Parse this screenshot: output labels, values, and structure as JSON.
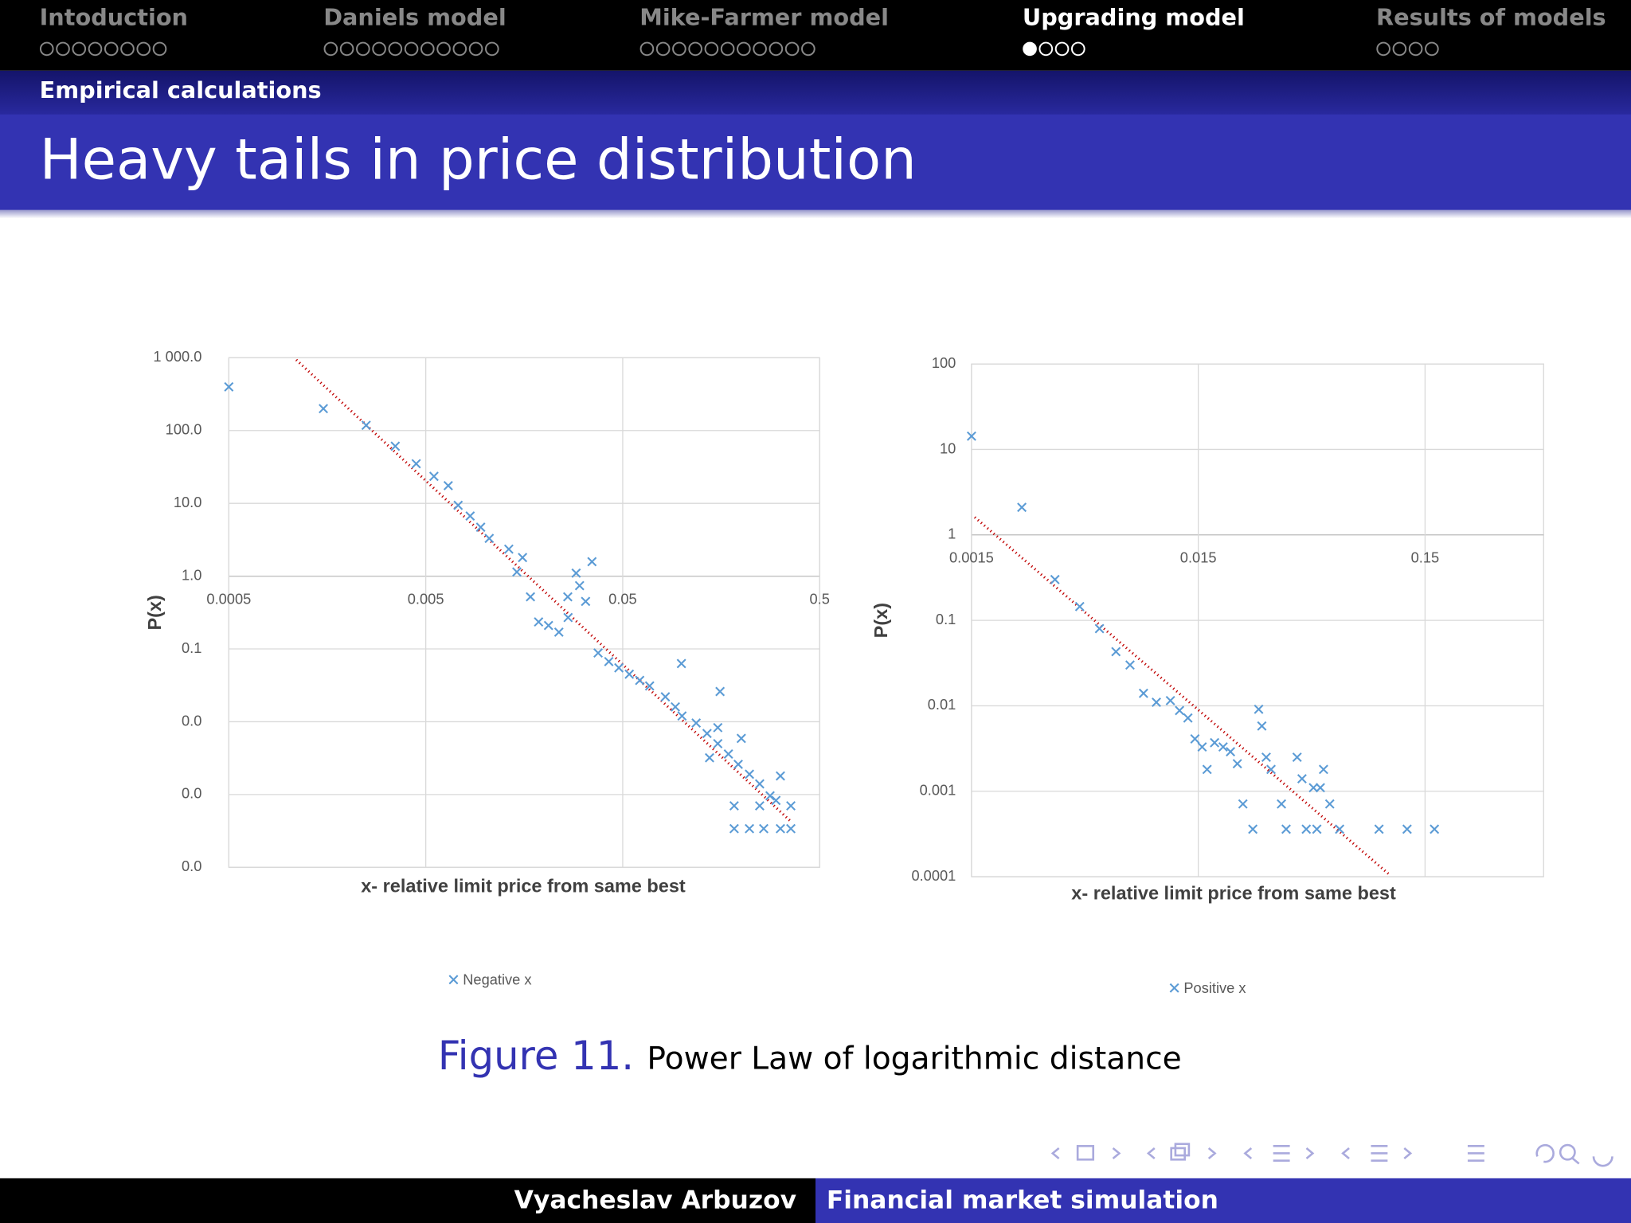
{
  "nav": {
    "sections": [
      "Intoduction",
      "Daniels model",
      "Mike-Farmer model",
      "Upgrading model",
      "Results of models"
    ],
    "current": "Upgrading model"
  },
  "header": {
    "subsection": "Empirical calculations",
    "title": "Heavy tails in price distribution"
  },
  "chart_data": [
    {
      "type": "scatter",
      "xlog": true,
      "ylog": true,
      "grid": true,
      "x_axis_crosses": 1,
      "marker": "x",
      "x_label": "x- relative limit price from same best",
      "y_label": "P(x)",
      "xlim": [
        0.0005,
        0.5
      ],
      "xticks": [
        0.0005,
        0.005,
        0.05,
        0.5
      ],
      "ylim": [
        0.0001,
        1000
      ],
      "yticks": [
        {
          "value": 1000,
          "label": "1 000.0"
        },
        {
          "value": 100,
          "label": "100.0"
        },
        {
          "value": 10,
          "label": "10.0"
        },
        {
          "value": 1,
          "label": "1.0"
        },
        0.1,
        {
          "value": 0.01,
          "label": "0.0"
        },
        {
          "value": 0.001,
          "label": "0.0"
        },
        {
          "value": 0.0001,
          "label": "0.0"
        }
      ],
      "series": [
        {
          "name": "Negative x",
          "color": "#5b9bd5",
          "x": [
            0.0005,
            0.00151,
            0.00249,
            0.0035,
            0.00447,
            0.0055,
            0.0065,
            0.0073,
            0.0084,
            0.0095,
            0.0105,
            0.0132,
            0.0155,
            0.0145,
            0.017,
            0.0187,
            0.021,
            0.0237,
            0.0264,
            0.0263,
            0.029,
            0.0302,
            0.0324,
            0.0349,
            0.0375,
            0.0425,
            0.0478,
            0.054,
            0.061,
            0.0685,
            0.0993,
            0.0823,
            0.0925,
            0.1,
            0.118,
            0.134,
            0.156,
            0.152,
            0.172,
            0.193,
            0.22,
            0.248,
            0.28,
            0.316,
            0.184,
            0.248,
            0.357,
            0.184,
            0.22,
            0.26,
            0.316,
            0.357,
            0.138,
            0.152,
            0.2,
            0.3
          ],
          "values": [
            398,
            200,
            118,
            61,
            35,
            23.5,
            17.5,
            9.4,
            6.7,
            4.7,
            3.3,
            2.35,
            1.8,
            1.14,
            0.52,
            0.235,
            0.21,
            0.17,
            0.27,
            0.52,
            1.1,
            0.74,
            0.45,
            1.58,
            0.088,
            0.067,
            0.055,
            0.045,
            0.037,
            0.031,
            0.063,
            0.022,
            0.016,
            0.012,
            0.0096,
            0.0069,
            0.026,
            0.005,
            0.0036,
            0.0026,
            0.0019,
            0.0014,
            0.00096,
            0.0018,
            0.0007,
            0.0007,
            0.0007,
            0.00034,
            0.00034,
            0.00034,
            0.00034,
            0.00034,
            0.0032,
            0.0083,
            0.0059,
            0.00083
          ]
        }
      ],
      "trendline": {
        "color": "#c00000",
        "x": [
          0.0011,
          0.356
        ],
        "y": [
          936,
          0.00043
        ]
      }
    },
    {
      "type": "scatter",
      "xlog": true,
      "ylog": true,
      "grid": true,
      "x_axis_crosses": 1,
      "marker": "x",
      "x_label": "x- relative limit price from same best",
      "y_label": "P(x)",
      "xlim": [
        0.0015,
        0.5
      ],
      "xticks": [
        0.0015,
        0.015,
        0.15
      ],
      "ylim": [
        0.0001,
        100
      ],
      "yticks": [
        100,
        10,
        1,
        0.1,
        0.01,
        0.001,
        0.0001
      ],
      "series": [
        {
          "name": "Positive x",
          "color": "#5b9bd5",
          "x": [
            0.0015,
            0.0025,
            0.0035,
            0.0045,
            0.0055,
            0.0065,
            0.0075,
            0.0086,
            0.0098,
            0.0113,
            0.0124,
            0.0135,
            0.0145,
            0.0156,
            0.0164,
            0.0177,
            0.0193,
            0.0208,
            0.0223,
            0.0236,
            0.0261,
            0.0277,
            0.0286,
            0.0299,
            0.0314,
            0.0349,
            0.0366,
            0.0409,
            0.043,
            0.0449,
            0.0483,
            0.0518,
            0.0535,
            0.057,
            0.05,
            0.063,
            0.094,
            0.125,
            0.165
          ],
          "values": [
            14.3,
            2.1,
            0.3,
            0.145,
            0.08,
            0.043,
            0.03,
            0.014,
            0.011,
            0.0115,
            0.0088,
            0.0072,
            0.0041,
            0.0033,
            0.0018,
            0.0037,
            0.0033,
            0.0029,
            0.0021,
            0.00071,
            0.00036,
            0.0091,
            0.0058,
            0.0025,
            0.0018,
            0.00071,
            0.00036,
            0.0025,
            0.0014,
            0.00036,
            0.0011,
            0.0011,
            0.0018,
            0.00071,
            0.00036,
            0.00036,
            0.00036,
            0.00036,
            0.00036
          ]
        }
      ],
      "trendline": {
        "color": "#c00000",
        "x": [
          0.00155,
          0.1035
        ],
        "y": [
          1.61,
          0.000108
        ]
      }
    }
  ],
  "caption": {
    "label": "Figure 11.",
    "text": "Power Law of logarithmic distance"
  },
  "footer": {
    "author": "Vyacheslav Arbuzov",
    "title": "Financial market simulation"
  }
}
